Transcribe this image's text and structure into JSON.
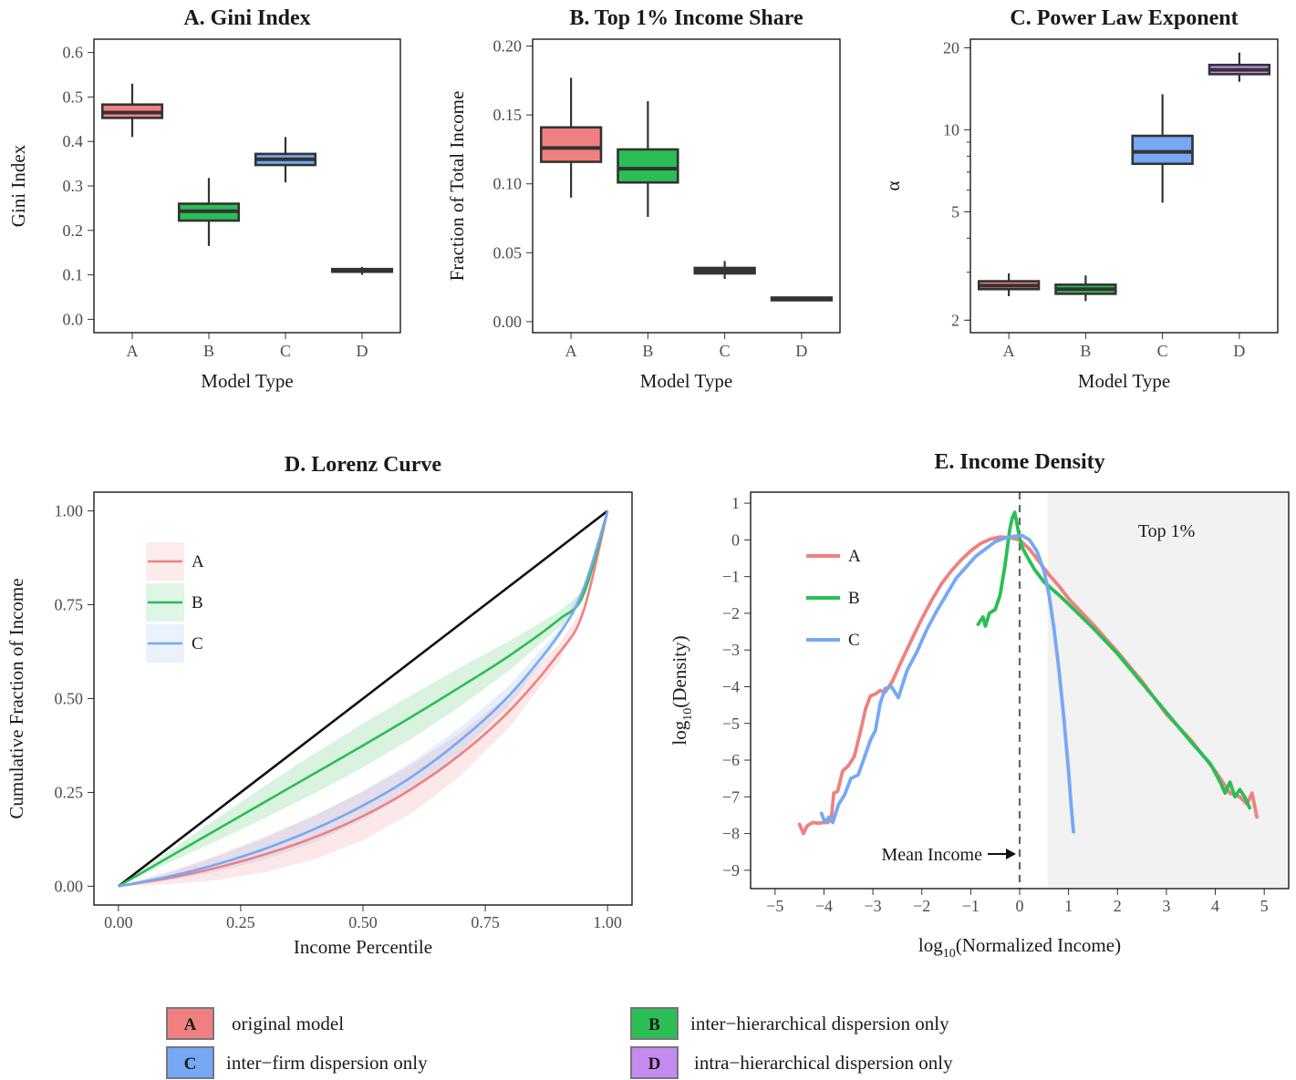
{
  "colors": {
    "A": "#F08080",
    "B": "#2BBE55",
    "C": "#76A8F5",
    "D": "#C58BF0",
    "box_line": "#333333",
    "shade": "#F2F2F2"
  },
  "chart_data": [
    {
      "id": "A",
      "type": "box",
      "title": "A.  Gini Index",
      "xlabel": "Model Type",
      "ylabel": "Gini Index",
      "categories": [
        "A",
        "B",
        "C",
        "D"
      ],
      "ylim": [
        -0.03,
        0.63
      ],
      "yticks": [
        0.0,
        0.1,
        0.2,
        0.3,
        0.4,
        0.5,
        0.6
      ],
      "ytick_labels": [
        "0.0",
        "0.1",
        "0.2",
        "0.3",
        "0.4",
        "0.5",
        "0.6"
      ],
      "boxes": [
        {
          "cat": "A",
          "min": 0.41,
          "q1": 0.453,
          "median": 0.465,
          "q3": 0.483,
          "max": 0.53
        },
        {
          "cat": "B",
          "min": 0.165,
          "q1": 0.222,
          "median": 0.243,
          "q3": 0.26,
          "max": 0.318
        },
        {
          "cat": "C",
          "min": 0.308,
          "q1": 0.347,
          "median": 0.36,
          "q3": 0.372,
          "max": 0.41
        },
        {
          "cat": "D",
          "min": 0.1,
          "q1": 0.107,
          "median": 0.11,
          "q3": 0.113,
          "max": 0.118
        }
      ]
    },
    {
      "id": "B",
      "type": "box",
      "title": "B.  Top 1% Income Share",
      "xlabel": "Model Type",
      "ylabel": "Fraction of Total Income",
      "categories": [
        "A",
        "B",
        "C",
        "D"
      ],
      "ylim": [
        -0.008,
        0.205
      ],
      "yticks": [
        0.0,
        0.05,
        0.1,
        0.15,
        0.2
      ],
      "ytick_labels": [
        "0.00",
        "0.05",
        "0.10",
        "0.15",
        "0.20"
      ],
      "boxes": [
        {
          "cat": "A",
          "min": 0.09,
          "q1": 0.116,
          "median": 0.126,
          "q3": 0.141,
          "max": 0.177
        },
        {
          "cat": "B",
          "min": 0.076,
          "q1": 0.101,
          "median": 0.111,
          "q3": 0.125,
          "max": 0.16
        },
        {
          "cat": "C",
          "min": 0.031,
          "q1": 0.035,
          "median": 0.037,
          "q3": 0.039,
          "max": 0.044
        },
        {
          "cat": "D",
          "min": 0.0165,
          "q1": 0.0165,
          "median": 0.0165,
          "q3": 0.0165,
          "max": 0.0165
        }
      ]
    },
    {
      "id": "C",
      "type": "box",
      "title": "C.  Power Law Exponent",
      "xlabel": "Model Type",
      "ylabel": "α",
      "categories": [
        "A",
        "B",
        "C",
        "D"
      ],
      "yscale": "log",
      "ylim": [
        1.8,
        21.5
      ],
      "yticks": [
        2,
        5,
        10,
        20
      ],
      "ytick_labels": [
        "2",
        "5",
        "10",
        "20"
      ],
      "boxes": [
        {
          "cat": "A",
          "min": 2.45,
          "q1": 2.6,
          "median": 2.68,
          "q3": 2.78,
          "max": 2.97
        },
        {
          "cat": "B",
          "min": 2.35,
          "q1": 2.5,
          "median": 2.6,
          "q3": 2.7,
          "max": 2.92
        },
        {
          "cat": "C",
          "min": 5.4,
          "q1": 7.5,
          "median": 8.3,
          "q3": 9.5,
          "max": 13.5
        },
        {
          "cat": "D",
          "min": 15.0,
          "q1": 16.0,
          "median": 16.6,
          "q3": 17.3,
          "max": 19.2
        }
      ]
    },
    {
      "id": "D",
      "type": "line",
      "title": "D.  Lorenz Curve",
      "xlabel": "Income Percentile",
      "ylabel": "Cumulative Fraction of Income",
      "xlim": [
        -0.05,
        1.05
      ],
      "ylim": [
        -0.05,
        1.05
      ],
      "xticks": [
        0,
        0.25,
        0.5,
        0.75,
        1.0
      ],
      "xtick_labels": [
        "0.00",
        "0.25",
        "0.50",
        "0.75",
        "1.00"
      ],
      "yticks": [
        0,
        0.25,
        0.5,
        0.75,
        1.0
      ],
      "ytick_labels": [
        "0.00",
        "0.25",
        "0.50",
        "0.75",
        "1.00"
      ],
      "legend": [
        "A",
        "B",
        "C"
      ],
      "legend_position": "top-left",
      "equality_line": [
        [
          0,
          0
        ],
        [
          1,
          1
        ]
      ],
      "series": [
        {
          "name": "A",
          "x": [
            0,
            0.1,
            0.2,
            0.3,
            0.4,
            0.5,
            0.6,
            0.7,
            0.8,
            0.9,
            0.95,
            1.0
          ],
          "y": [
            0,
            0.021,
            0.049,
            0.085,
            0.13,
            0.187,
            0.26,
            0.352,
            0.468,
            0.62,
            0.73,
            1.0
          ],
          "band_width": 0.05
        },
        {
          "name": "B",
          "x": [
            0,
            0.1,
            0.2,
            0.3,
            0.4,
            0.5,
            0.6,
            0.7,
            0.8,
            0.9,
            0.95,
            1.0
          ],
          "y": [
            0,
            0.075,
            0.15,
            0.225,
            0.3,
            0.375,
            0.452,
            0.532,
            0.615,
            0.71,
            0.775,
            1.0
          ],
          "band_width": 0.045
        },
        {
          "name": "C",
          "x": [
            0,
            0.1,
            0.2,
            0.3,
            0.4,
            0.5,
            0.6,
            0.7,
            0.8,
            0.9,
            0.95,
            1.0
          ],
          "y": [
            0,
            0.025,
            0.058,
            0.1,
            0.152,
            0.215,
            0.292,
            0.39,
            0.51,
            0.67,
            0.79,
            1.0
          ],
          "band_width": 0.03
        }
      ]
    },
    {
      "id": "E",
      "type": "line",
      "title": "E.  Income Density",
      "xlabel_main": "log",
      "xlabel_sub": "10",
      "xlabel_rest": "(Normalized Income)",
      "ylabel_main": "log",
      "ylabel_sub": "10",
      "ylabel_rest": "(Density)",
      "xlim": [
        -5.5,
        5.5
      ],
      "ylim": [
        -9.5,
        1.3
      ],
      "xticks": [
        -5,
        -4,
        -3,
        -2,
        -1,
        0,
        1,
        2,
        3,
        4,
        5
      ],
      "xtick_labels": [
        "−5",
        "−4",
        "−3",
        "−2",
        "−1",
        "0",
        "1",
        "2",
        "3",
        "4",
        "5"
      ],
      "yticks": [
        1,
        0,
        -1,
        -2,
        -3,
        -4,
        -5,
        -6,
        -7,
        -8,
        -9
      ],
      "ytick_labels": [
        "1",
        "0",
        "−1",
        "−2",
        "−3",
        "−4",
        "−5",
        "−6",
        "−7",
        "−8",
        "−9"
      ],
      "legend": [
        "A",
        "B",
        "C"
      ],
      "legend_position": "top-left",
      "shaded_region_xmin": 0.57,
      "shaded_region_label": "Top 1%",
      "mean_line_x": 0,
      "mean_label": "Mean Income",
      "series": [
        {
          "name": "A",
          "x": [
            -4.5,
            -4.42,
            -4.35,
            -4.3,
            -4.22,
            -4.12,
            -4.0,
            -3.92,
            -3.85,
            -3.8,
            -3.72,
            -3.62,
            -3.5,
            -3.38,
            -3.25,
            -3.15,
            -3.05,
            -2.95,
            -2.85,
            -2.75,
            -2.6,
            -2.45,
            -2.2,
            -2.0,
            -1.8,
            -1.6,
            -1.4,
            -1.2,
            -1.0,
            -0.8,
            -0.6,
            -0.4,
            -0.2,
            0,
            0.2,
            0.4,
            0.6,
            0.8,
            1.0,
            1.5,
            2.0,
            2.5,
            3.0,
            3.5,
            4.0,
            4.3,
            4.5,
            4.65,
            4.75,
            4.85
          ],
          "y": [
            -7.75,
            -8.0,
            -7.8,
            -7.75,
            -7.7,
            -7.72,
            -7.7,
            -7.7,
            -7.6,
            -6.9,
            -6.85,
            -6.3,
            -6.15,
            -5.9,
            -5.2,
            -4.6,
            -4.25,
            -4.2,
            -4.1,
            -4.15,
            -3.85,
            -3.4,
            -2.7,
            -2.15,
            -1.65,
            -1.2,
            -0.85,
            -0.55,
            -0.3,
            -0.1,
            0.02,
            0.08,
            0.06,
            0.0,
            -0.25,
            -0.6,
            -0.95,
            -1.25,
            -1.6,
            -2.3,
            -3.05,
            -3.85,
            -4.75,
            -5.45,
            -6.3,
            -6.9,
            -7.0,
            -7.2,
            -6.9,
            -7.55
          ]
        },
        {
          "name": "B",
          "x": [
            -0.85,
            -0.75,
            -0.7,
            -0.62,
            -0.5,
            -0.4,
            -0.3,
            -0.2,
            -0.15,
            -0.1,
            -0.05,
            0.0,
            0.05,
            0.15,
            0.3,
            0.5,
            0.8,
            1.0,
            1.5,
            2.0,
            2.5,
            3.0,
            3.5,
            3.9,
            4.1,
            4.2,
            4.3,
            4.4,
            4.5,
            4.6,
            4.7
          ],
          "y": [
            -2.3,
            -2.1,
            -2.35,
            -2.0,
            -1.9,
            -1.5,
            -0.7,
            0.3,
            0.6,
            0.75,
            0.4,
            0.05,
            -0.2,
            -0.45,
            -0.8,
            -1.15,
            -1.5,
            -1.75,
            -2.4,
            -3.1,
            -3.9,
            -4.7,
            -5.5,
            -6.1,
            -6.6,
            -6.9,
            -6.6,
            -7.0,
            -6.8,
            -7.0,
            -7.3
          ]
        },
        {
          "name": "C",
          "x": [
            -4.05,
            -3.98,
            -3.9,
            -3.82,
            -3.7,
            -3.58,
            -3.45,
            -3.3,
            -3.18,
            -3.05,
            -2.95,
            -2.85,
            -2.75,
            -2.62,
            -2.48,
            -2.3,
            -2.1,
            -1.9,
            -1.7,
            -1.5,
            -1.3,
            -1.1,
            -0.9,
            -0.7,
            -0.5,
            -0.3,
            -0.1,
            0.05,
            0.2,
            0.35,
            0.5,
            0.6,
            0.7,
            0.8,
            0.9,
            1.0,
            1.05,
            1.1
          ],
          "y": [
            -7.45,
            -7.7,
            -7.55,
            -7.7,
            -7.2,
            -6.95,
            -6.5,
            -6.4,
            -5.95,
            -5.45,
            -5.2,
            -4.45,
            -4.05,
            -4.0,
            -4.3,
            -3.55,
            -3.05,
            -2.45,
            -1.95,
            -1.5,
            -1.05,
            -0.75,
            -0.45,
            -0.25,
            -0.05,
            0.05,
            0.1,
            0.12,
            0.0,
            -0.3,
            -0.85,
            -1.5,
            -2.4,
            -3.5,
            -4.8,
            -6.3,
            -7.2,
            -7.95
          ]
        }
      ]
    }
  ],
  "legend_bottom": [
    {
      "key": "A",
      "label": "original model"
    },
    {
      "key": "B",
      "label": "inter−hierarchical dispersion only"
    },
    {
      "key": "C",
      "label": "inter−firm dispersion only"
    },
    {
      "key": "D",
      "label": "intra−hierarchical dispersion only"
    }
  ]
}
